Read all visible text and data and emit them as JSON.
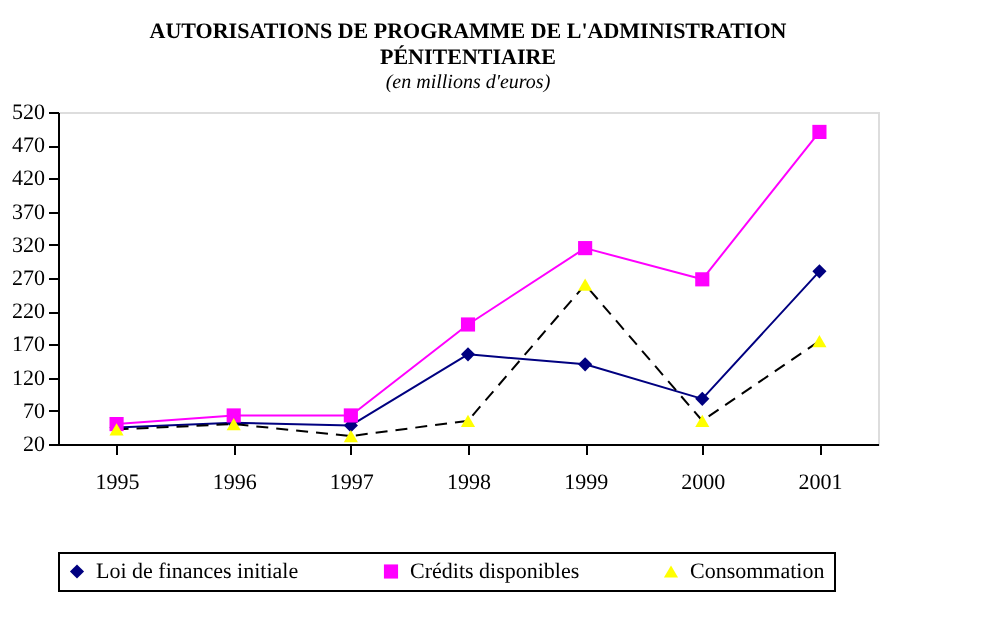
{
  "chart_data": {
    "type": "line",
    "title": "AUTORISATIONS DE PROGRAMME DE L'ADMINISTRATION PÉNITENTIAIRE",
    "subtitle": "(en millions d'euros)",
    "categories": [
      "1995",
      "1996",
      "1997",
      "1998",
      "1999",
      "2000",
      "2001"
    ],
    "series": [
      {
        "name": "Loi de finances initiale",
        "color": "#000080",
        "marker": "diamond",
        "line_style": "solid",
        "values": [
          45,
          52,
          48,
          155,
          140,
          88,
          280
        ]
      },
      {
        "name": "Crédits disponibles",
        "color": "#ff00ff",
        "marker": "square",
        "line_style": "solid",
        "values": [
          50,
          63,
          63,
          200,
          315,
          268,
          490
        ]
      },
      {
        "name": "Consommation",
        "color": "#000000",
        "marker": "triangle",
        "colors": [
          "#ffff00",
          "#ffff00",
          "#ffff00",
          "#ffff00",
          "#ffff00",
          "#ffff00",
          "#ffff00"
        ],
        "line_style": "dashed",
        "values": [
          42,
          50,
          32,
          55,
          260,
          55,
          175
        ]
      }
    ],
    "ylim": [
      20,
      520
    ],
    "yticks": [
      20,
      70,
      120,
      170,
      220,
      270,
      320,
      370,
      420,
      470,
      520
    ],
    "grid": false,
    "legend": "bottom"
  }
}
